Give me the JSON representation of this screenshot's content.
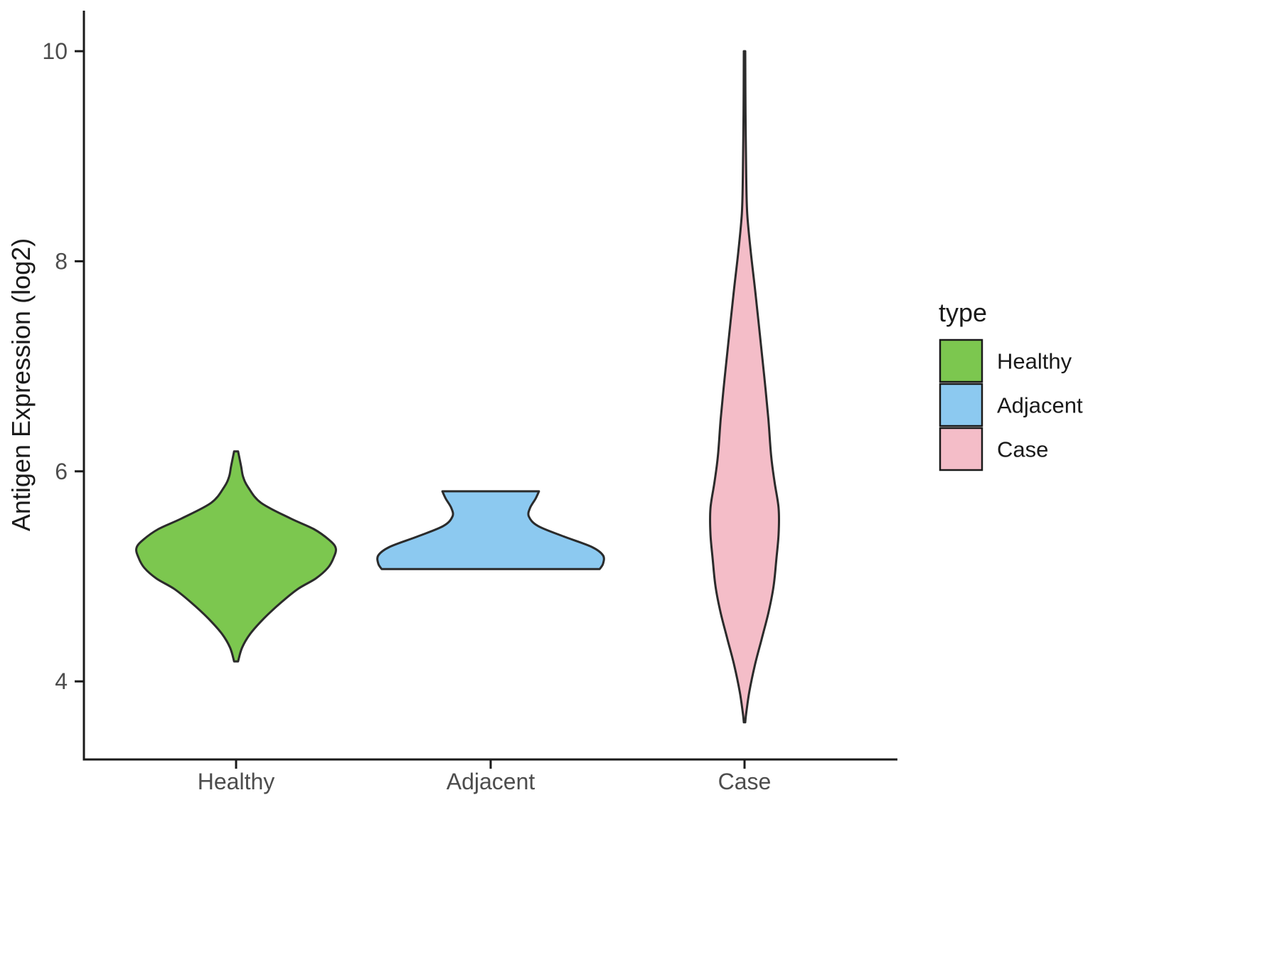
{
  "figure": {
    "background": "#FFFFFF",
    "axis_color": "#1A1A1A",
    "tick_label_color": "#4D4D4D",
    "outline_color": "#2B2B2B"
  },
  "y_axis": {
    "title": "Antigen Expression (log2)",
    "ticks": [
      "4",
      "6",
      "8",
      "10"
    ],
    "tick_values": [
      4,
      6,
      8,
      10
    ]
  },
  "x_axis": {
    "categories": [
      "Healthy",
      "Adjacent",
      "Case"
    ]
  },
  "legend": {
    "title": "type",
    "items": [
      {
        "label": "Healthy",
        "color": "#7CC74F"
      },
      {
        "label": "Adjacent",
        "color": "#8CC9F0"
      },
      {
        "label": "Case",
        "color": "#F4BDC8"
      }
    ]
  },
  "chart_data": {
    "type": "violin",
    "title": "",
    "xlabel": "",
    "ylabel": "Antigen Expression (log2)",
    "categories": [
      "Healthy",
      "Adjacent",
      "Case"
    ],
    "ylim": [
      3.3,
      10.4
    ],
    "grid": false,
    "legend_position": "right",
    "series": [
      {
        "name": "Healthy",
        "color": "#7CC74F",
        "y_range": [
          4.19,
          6.19
        ],
        "max_halfwidth_frac": 0.392,
        "profile": [
          [
            6.19,
            0.02
          ],
          [
            6.05,
            0.05
          ],
          [
            5.95,
            0.07
          ],
          [
            5.85,
            0.12
          ],
          [
            5.7,
            0.25
          ],
          [
            5.55,
            0.55
          ],
          [
            5.45,
            0.78
          ],
          [
            5.35,
            0.93
          ],
          [
            5.27,
            1.0
          ],
          [
            5.18,
            0.98
          ],
          [
            5.08,
            0.92
          ],
          [
            4.98,
            0.8
          ],
          [
            4.88,
            0.62
          ],
          [
            4.75,
            0.45
          ],
          [
            4.6,
            0.28
          ],
          [
            4.45,
            0.14
          ],
          [
            4.32,
            0.06
          ],
          [
            4.19,
            0.02
          ]
        ]
      },
      {
        "name": "Adjacent",
        "color": "#8CC9F0",
        "y_range": [
          5.07,
          5.81
        ],
        "max_halfwidth_frac": 0.442,
        "profile": [
          [
            5.81,
            0.43
          ],
          [
            5.74,
            0.4
          ],
          [
            5.65,
            0.35
          ],
          [
            5.57,
            0.34
          ],
          [
            5.48,
            0.42
          ],
          [
            5.38,
            0.65
          ],
          [
            5.28,
            0.9
          ],
          [
            5.2,
            1.0
          ],
          [
            5.12,
            1.0
          ],
          [
            5.07,
            0.97
          ]
        ]
      },
      {
        "name": "Case",
        "color": "#F4BDC8",
        "y_range": [
          3.61,
          10.0
        ],
        "max_halfwidth_frac": 0.134,
        "profile": [
          [
            10.0,
            0.02
          ],
          [
            9.4,
            0.03
          ],
          [
            8.8,
            0.05
          ],
          [
            8.45,
            0.08
          ],
          [
            8.1,
            0.18
          ],
          [
            7.7,
            0.32
          ],
          [
            7.3,
            0.45
          ],
          [
            6.9,
            0.58
          ],
          [
            6.5,
            0.7
          ],
          [
            6.15,
            0.78
          ],
          [
            5.9,
            0.88
          ],
          [
            5.65,
            1.0
          ],
          [
            5.4,
            1.0
          ],
          [
            5.15,
            0.93
          ],
          [
            4.9,
            0.85
          ],
          [
            4.65,
            0.7
          ],
          [
            4.4,
            0.5
          ],
          [
            4.15,
            0.3
          ],
          [
            3.9,
            0.14
          ],
          [
            3.7,
            0.05
          ],
          [
            3.61,
            0.02
          ]
        ]
      }
    ]
  }
}
